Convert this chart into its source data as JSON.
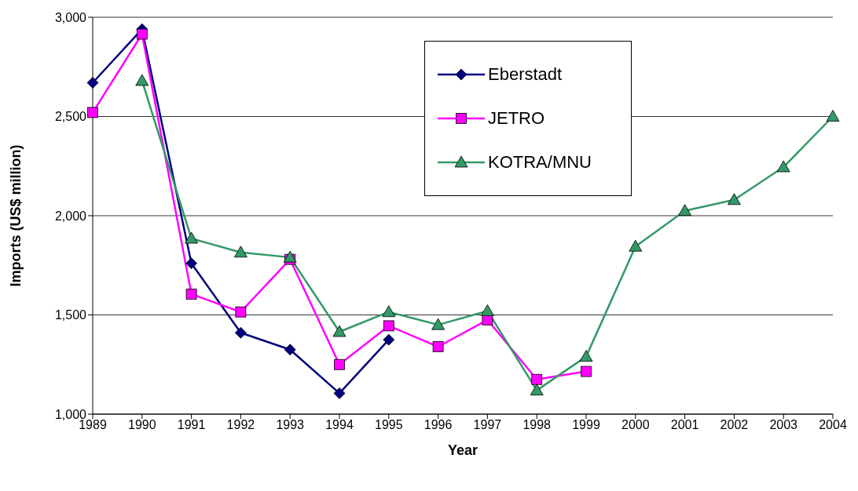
{
  "chart_data": {
    "type": "line",
    "xlabel": "Year",
    "ylabel": "Imports (US$ million)",
    "categories": [
      "1989",
      "1990",
      "1991",
      "1992",
      "1993",
      "1994",
      "1995",
      "1996",
      "1997",
      "1998",
      "1999",
      "2000",
      "2001",
      "2002",
      "2003",
      "2004"
    ],
    "series": [
      {
        "name": "Eberstadt",
        "color": "#000080",
        "marker": "diamond",
        "values": [
          2670,
          2940,
          1760,
          1410,
          1325,
          1105,
          1375,
          null,
          null,
          null,
          null,
          null,
          null,
          null,
          null,
          null
        ]
      },
      {
        "name": "JETRO",
        "color": "#ff00ff",
        "marker": "square",
        "values": [
          2520,
          2915,
          1605,
          1515,
          1780,
          1250,
          1445,
          1340,
          1475,
          1175,
          1215,
          null,
          null,
          null,
          null,
          null
        ]
      },
      {
        "name": "KOTRA/MNU",
        "color": "#339966",
        "marker": "triangle",
        "values": [
          null,
          2680,
          1885,
          1815,
          1790,
          1415,
          1515,
          1450,
          1520,
          1120,
          1290,
          1845,
          2025,
          2080,
          2245,
          2500
        ]
      }
    ],
    "ylim": [
      1000,
      3000
    ],
    "yticks": [
      {
        "value": 1000,
        "label": "1,000"
      },
      {
        "value": 1500,
        "label": "1,500"
      },
      {
        "value": 2000,
        "label": "2,000"
      },
      {
        "value": 2500,
        "label": "2,500"
      },
      {
        "value": 3000,
        "label": "3,000"
      }
    ],
    "grid": "y",
    "legend": "top",
    "line_style": "solid"
  }
}
